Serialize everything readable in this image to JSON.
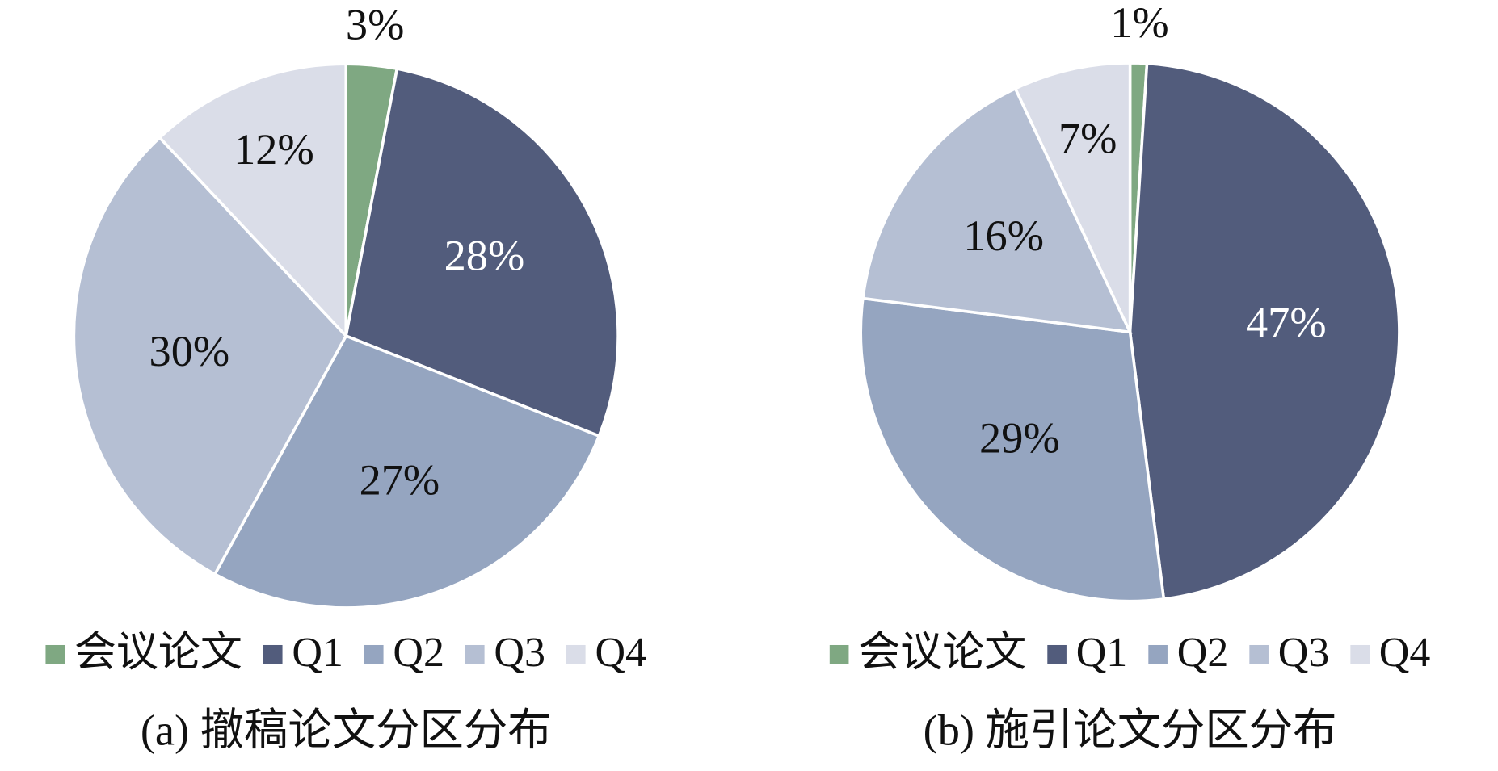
{
  "chart_data": [
    {
      "type": "pie",
      "caption": "(a) 撤稿论文分区分布",
      "categories": [
        "会议论文",
        "Q1",
        "Q2",
        "Q3",
        "Q4"
      ],
      "values": [
        3,
        28,
        27,
        30,
        12
      ],
      "value_labels": [
        "3%",
        "28%",
        "27%",
        "30%",
        "12%"
      ],
      "colors": [
        "#7fa882",
        "#525c7c",
        "#95a5c0",
        "#b5bfd3",
        "#dadde8"
      ]
    },
    {
      "type": "pie",
      "caption": "(b) 施引论文分区分布",
      "categories": [
        "会议论文",
        "Q1",
        "Q2",
        "Q3",
        "Q4"
      ],
      "values": [
        1,
        47,
        29,
        16,
        7
      ],
      "value_labels": [
        "1%",
        "47%",
        "29%",
        "16%",
        "7%"
      ],
      "colors": [
        "#7fa882",
        "#525c7c",
        "#95a5c0",
        "#b5bfd3",
        "#dadde8"
      ]
    }
  ]
}
